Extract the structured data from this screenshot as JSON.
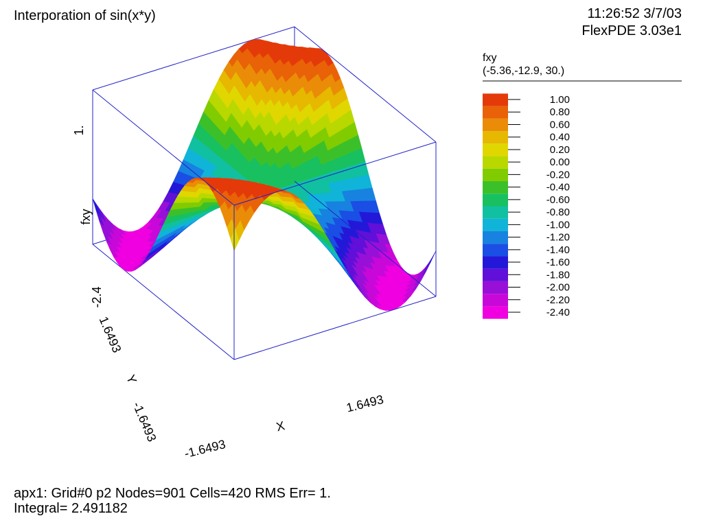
{
  "header": {
    "title": "Interporation of sin(x*y)",
    "timestamp": "11:26:52 3/7/03",
    "version": "FlexPDE 3.03e1"
  },
  "legend": {
    "variable": "fxy",
    "view_point": "(-5.36,-12.9, 30.)",
    "levels": [
      "1.00",
      "0.80",
      "0.60",
      "0.40",
      "0.20",
      "0.00",
      "-0.20",
      "-0.40",
      "-0.60",
      "-0.80",
      "-1.00",
      "-1.20",
      "-1.40",
      "-1.60",
      "-1.80",
      "-2.00",
      "-2.20",
      "-2.40"
    ],
    "colors": [
      "#e43a0a",
      "#e96207",
      "#ea8c07",
      "#e6b800",
      "#e0d700",
      "#b8d800",
      "#80cc00",
      "#3cc02a",
      "#18c060",
      "#10c0a0",
      "#10b4d8",
      "#1882e0",
      "#1a4ee4",
      "#2418d8",
      "#6010d8",
      "#9810d8",
      "#c808d8",
      "#f000e0"
    ]
  },
  "chart_data": {
    "type": "surface3d",
    "function": "sin(x*y)",
    "zlabel": "fxy",
    "xlabel": "X",
    "ylabel": "Y",
    "x_range": [
      -1.6493,
      1.6493
    ],
    "y_range": [
      -1.6493,
      1.6493
    ],
    "z_range": [
      -2.4,
      1.0
    ],
    "axis_tick_labels": {
      "x_min": "-1.6493",
      "x_max": "1.6493",
      "y_min": "-1.6493",
      "y_max": "1.6493",
      "z_min": "-2.4",
      "z_max": "1."
    },
    "color_levels": [
      1.0,
      0.8,
      0.6,
      0.4,
      0.2,
      0.0,
      -0.2,
      -0.4,
      -0.6,
      -0.8,
      -1.0,
      -1.2,
      -1.4,
      -1.6,
      -1.8,
      -2.0,
      -2.2,
      -2.4
    ]
  },
  "footer": {
    "line1": "apx1:  Grid#0  p2  Nodes=901 Cells=420 RMS Err= 1.",
    "line2": "Integral=  2.491182"
  }
}
